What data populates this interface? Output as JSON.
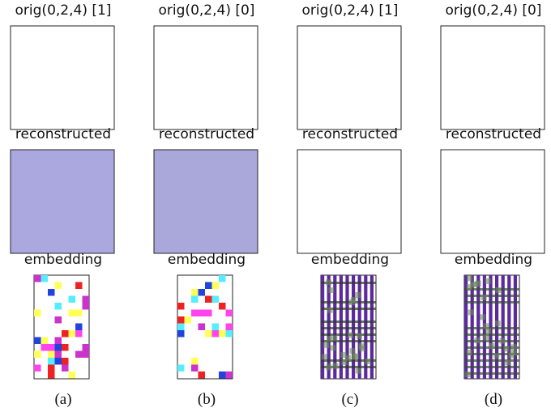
{
  "panels": [
    {
      "top_title": "orig(0,2,4) [1]",
      "middle_title": "reconstructed",
      "bottom_title": "embedding",
      "caption": "(a)"
    },
    {
      "top_title": "orig(0,2,4) [0]",
      "middle_title": "reconstructed",
      "bottom_title": "embedding",
      "caption": "(b)"
    },
    {
      "top_title": "orig(0,2,4) [1]",
      "middle_title": "reconstructed",
      "bottom_title": "embedding",
      "caption": "(c)"
    },
    {
      "top_title": "orig(0,2,4) [0]",
      "middle_title": "reconstructed",
      "bottom_title": "embedding",
      "caption": "(d)"
    }
  ]
}
